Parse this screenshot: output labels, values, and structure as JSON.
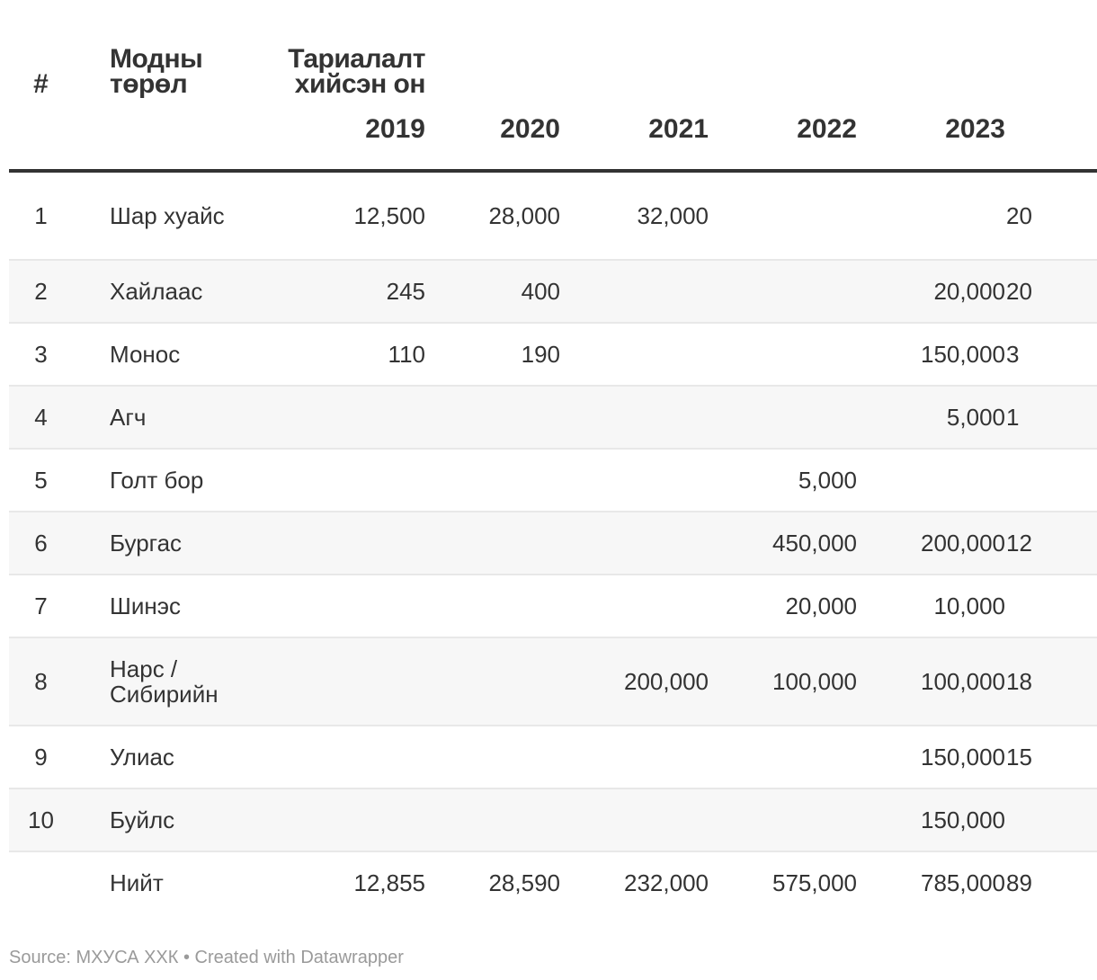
{
  "chart_data": {
    "type": "table",
    "header": {
      "num": "#",
      "name": "Модны төрөл",
      "group": "Тариалалт хийсэн он"
    },
    "years": [
      "2019",
      "2020",
      "2021",
      "2022",
      "2023",
      ""
    ],
    "rows": [
      {
        "num": "1",
        "name": "Шар хуайс",
        "values": [
          "12,500",
          "28,000",
          "32,000",
          "",
          "",
          "20"
        ]
      },
      {
        "num": "2",
        "name": "Хайлаас",
        "values": [
          "245",
          "400",
          "",
          "",
          "20,000",
          "20"
        ]
      },
      {
        "num": "3",
        "name": "Монос",
        "values": [
          "110",
          "190",
          "",
          "",
          "150,000",
          "3"
        ]
      },
      {
        "num": "4",
        "name": "Агч",
        "values": [
          "",
          "",
          "",
          "",
          "5,000",
          "1"
        ]
      },
      {
        "num": "5",
        "name": "Голт бор",
        "values": [
          "",
          "",
          "",
          "5,000",
          "",
          ""
        ]
      },
      {
        "num": "6",
        "name": "Бургас",
        "values": [
          "",
          "",
          "",
          "450,000",
          "200,000",
          "12"
        ]
      },
      {
        "num": "7",
        "name": "Шинэс",
        "values": [
          "",
          "",
          "",
          "20,000",
          "10,000",
          ""
        ]
      },
      {
        "num": "8",
        "name": "Нарс / Сибирийн",
        "values": [
          "",
          "",
          "200,000",
          "100,000",
          "100,000",
          "18"
        ]
      },
      {
        "num": "9",
        "name": "Улиас",
        "values": [
          "",
          "",
          "",
          "",
          "150,000",
          "15"
        ]
      },
      {
        "num": "10",
        "name": "Буйлс",
        "values": [
          "",
          "",
          "",
          "",
          "150,000",
          ""
        ]
      }
    ],
    "total": {
      "num": "",
      "name": "Нийт",
      "values": [
        "12,855",
        "28,590",
        "232,000",
        "575,000",
        "785,000",
        "89"
      ]
    }
  },
  "footer": {
    "text": "Source: МХУСА ХХК • Created with Datawrapper"
  },
  "colors": {
    "text": "#333333",
    "stripe": "#f7f7f7",
    "rule": "#333333",
    "footer": "#9a9a9a"
  }
}
